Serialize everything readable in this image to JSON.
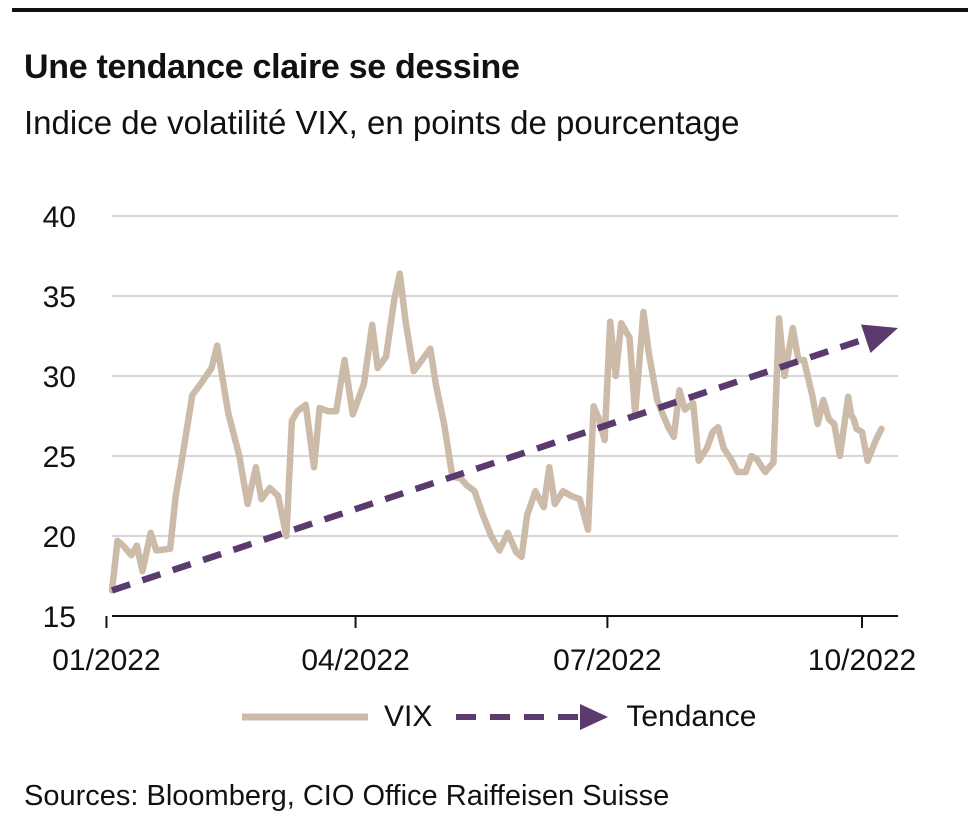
{
  "header": {
    "title": "Une tendance claire se dessine",
    "subtitle": "Indice de volatilité VIX, en points de pourcentage"
  },
  "footer": {
    "source": "Sources: Bloomberg, CIO Office Raiffeisen Suisse"
  },
  "chart_data": {
    "type": "line",
    "title": "Une tendance claire se dessine",
    "subtitle": "Indice de volatilité VIX, en points de pourcentage",
    "xlabel": "",
    "ylabel": "",
    "x_range": [
      "2022-01-03",
      "2022-10-14"
    ],
    "ylim": [
      15,
      40
    ],
    "y_ticks": [
      15,
      20,
      25,
      30,
      35,
      40
    ],
    "y_tick_labels": [
      "15",
      "20",
      "25",
      "30",
      "35",
      "40"
    ],
    "x_ticks": [
      "2022-01-01",
      "2022-04-01",
      "2022-07-01",
      "2022-10-01"
    ],
    "x_tick_labels": [
      "01/2022",
      "04/2022",
      "07/2022",
      "10/2022"
    ],
    "grid": "horizontal",
    "legend_position": "bottom",
    "colors": {
      "vix": "#cdbba9",
      "trend": "#5b3a6e",
      "grid": "#c8c8c8",
      "axis": "#111111"
    },
    "series": [
      {
        "name": "VIX",
        "style": "solid",
        "points": [
          [
            "2022-01-03",
            16.6
          ],
          [
            "2022-01-05",
            19.7
          ],
          [
            "2022-01-07",
            19.4
          ],
          [
            "2022-01-10",
            18.8
          ],
          [
            "2022-01-12",
            19.4
          ],
          [
            "2022-01-14",
            17.8
          ],
          [
            "2022-01-17",
            20.2
          ],
          [
            "2022-01-19",
            19.1
          ],
          [
            "2022-01-24",
            19.2
          ],
          [
            "2022-01-26",
            22.5
          ],
          [
            "2022-01-28",
            24.5
          ],
          [
            "2022-02-01",
            28.8
          ],
          [
            "2022-02-04",
            29.5
          ],
          [
            "2022-02-08",
            30.5
          ],
          [
            "2022-02-10",
            31.9
          ],
          [
            "2022-02-14",
            27.7
          ],
          [
            "2022-02-18",
            25.0
          ],
          [
            "2022-02-21",
            22.0
          ],
          [
            "2022-02-24",
            24.3
          ],
          [
            "2022-02-26",
            22.3
          ],
          [
            "2022-03-01",
            23.0
          ],
          [
            "2022-03-04",
            22.5
          ],
          [
            "2022-03-07",
            20.0
          ],
          [
            "2022-03-09",
            27.2
          ],
          [
            "2022-03-11",
            27.8
          ],
          [
            "2022-03-14",
            28.2
          ],
          [
            "2022-03-17",
            24.3
          ],
          [
            "2022-03-19",
            28.0
          ],
          [
            "2022-03-22",
            27.8
          ],
          [
            "2022-03-25",
            27.8
          ],
          [
            "2022-03-28",
            31.0
          ],
          [
            "2022-03-31",
            27.6
          ],
          [
            "2022-04-04",
            29.5
          ],
          [
            "2022-04-07",
            33.2
          ],
          [
            "2022-04-09",
            30.5
          ],
          [
            "2022-04-12",
            31.2
          ],
          [
            "2022-04-15",
            34.8
          ],
          [
            "2022-04-17",
            36.4
          ],
          [
            "2022-04-19",
            33.5
          ],
          [
            "2022-04-22",
            30.3
          ],
          [
            "2022-04-25",
            31.0
          ],
          [
            "2022-04-28",
            31.7
          ],
          [
            "2022-04-30",
            29.5
          ],
          [
            "2022-05-03",
            27.0
          ],
          [
            "2022-05-06",
            23.7
          ],
          [
            "2022-05-09",
            23.6
          ],
          [
            "2022-05-11",
            23.2
          ],
          [
            "2022-05-14",
            22.8
          ],
          [
            "2022-05-17",
            21.3
          ],
          [
            "2022-05-20",
            20.0
          ],
          [
            "2022-05-23",
            19.1
          ],
          [
            "2022-05-26",
            20.2
          ],
          [
            "2022-05-29",
            19.0
          ],
          [
            "2022-05-31",
            18.7
          ],
          [
            "2022-06-02",
            21.3
          ],
          [
            "2022-06-05",
            22.8
          ],
          [
            "2022-06-08",
            21.8
          ],
          [
            "2022-06-10",
            24.3
          ],
          [
            "2022-06-12",
            22.0
          ],
          [
            "2022-06-15",
            22.8
          ],
          [
            "2022-06-18",
            22.5
          ],
          [
            "2022-06-21",
            22.3
          ],
          [
            "2022-06-24",
            20.4
          ],
          [
            "2022-06-26",
            28.1
          ],
          [
            "2022-06-28",
            27.3
          ],
          [
            "2022-06-30",
            26.0
          ],
          [
            "2022-07-02",
            33.4
          ],
          [
            "2022-07-04",
            30.0
          ],
          [
            "2022-07-06",
            33.3
          ],
          [
            "2022-07-09",
            32.4
          ],
          [
            "2022-07-11",
            27.7
          ],
          [
            "2022-07-13",
            31.8
          ],
          [
            "2022-07-14",
            34.0
          ],
          [
            "2022-07-16",
            31.4
          ],
          [
            "2022-07-19",
            28.5
          ],
          [
            "2022-07-21",
            27.6
          ],
          [
            "2022-07-23",
            26.8
          ],
          [
            "2022-07-25",
            26.2
          ],
          [
            "2022-07-27",
            29.1
          ],
          [
            "2022-07-29",
            27.9
          ],
          [
            "2022-08-01",
            28.3
          ],
          [
            "2022-08-03",
            24.7
          ],
          [
            "2022-08-06",
            25.5
          ],
          [
            "2022-08-08",
            26.5
          ],
          [
            "2022-08-10",
            26.8
          ],
          [
            "2022-08-12",
            25.5
          ],
          [
            "2022-08-15",
            24.7
          ],
          [
            "2022-08-17",
            24.0
          ],
          [
            "2022-08-20",
            24.0
          ],
          [
            "2022-08-22",
            25.0
          ],
          [
            "2022-08-24",
            24.8
          ],
          [
            "2022-08-27",
            24.0
          ],
          [
            "2022-08-30",
            24.6
          ],
          [
            "2022-09-01",
            33.6
          ],
          [
            "2022-09-03",
            30.0
          ],
          [
            "2022-09-06",
            33.0
          ],
          [
            "2022-09-08",
            31.0
          ],
          [
            "2022-09-10",
            31.0
          ],
          [
            "2022-09-13",
            28.8
          ],
          [
            "2022-09-15",
            27.0
          ],
          [
            "2022-09-17",
            28.5
          ],
          [
            "2022-09-19",
            27.3
          ],
          [
            "2022-09-21",
            27.0
          ],
          [
            "2022-09-23",
            25.0
          ],
          [
            "2022-09-26",
            28.7
          ],
          [
            "2022-09-27",
            27.6
          ],
          [
            "2022-09-28",
            27.3
          ],
          [
            "2022-09-29",
            26.7
          ],
          [
            "2022-10-01",
            26.5
          ],
          [
            "2022-10-03",
            24.7
          ],
          [
            "2022-10-06",
            26.0
          ],
          [
            "2022-10-08",
            26.7
          ]
        ]
      },
      {
        "name": "Tendance",
        "style": "dashed-arrow",
        "points": [
          [
            "2022-01-03",
            16.6
          ],
          [
            "2022-10-14",
            33.0
          ]
        ]
      }
    ]
  }
}
